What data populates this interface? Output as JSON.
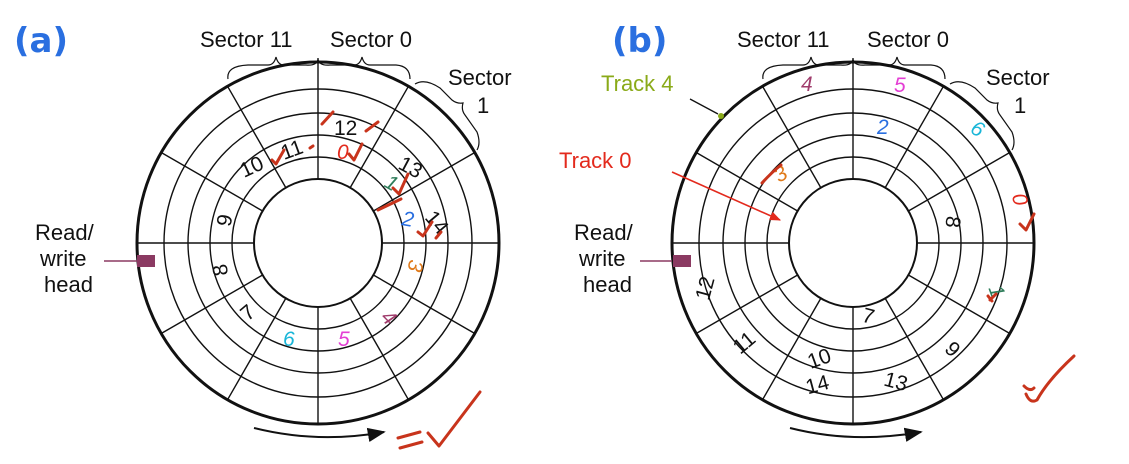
{
  "diagram_a": {
    "panel_label": "(a)",
    "sector_labels": [
      "Sector 11",
      "Sector 0",
      "Sector",
      "1"
    ],
    "head_label": [
      "Read/",
      "write",
      "head"
    ],
    "colors": {
      "head": "#8b3a62",
      "sector_0": "#e32a1d",
      "sector_1": "#2e7d5a",
      "sector_2": "#2a6fe0",
      "sector_3": "#e07a1a",
      "sector_4": "#a03c6c",
      "sector_5": "#e43fd4",
      "sector_6": "#19b6d8",
      "other": "#111111"
    },
    "numbers": [
      "12",
      "13",
      "14",
      "11",
      "10",
      "9",
      "8",
      "7",
      "0",
      "1",
      "2",
      "3",
      "4",
      "5",
      "6"
    ]
  },
  "diagram_b": {
    "panel_label": "(b)",
    "sector_labels": [
      "Sector 11",
      "Sector 0",
      "Sector",
      "1"
    ],
    "track_labels": {
      "track4": "Track 4",
      "track0": "Track 0"
    },
    "colors": {
      "track4": "#8aaa18",
      "track0": "#e32a1d"
    },
    "head_label": [
      "Read/",
      "write",
      "head"
    ],
    "numbers": [
      "4",
      "5",
      "2",
      "6",
      "3",
      "0",
      "8",
      "1",
      "12",
      "11",
      "10",
      "14",
      "7",
      "13",
      "9"
    ]
  }
}
